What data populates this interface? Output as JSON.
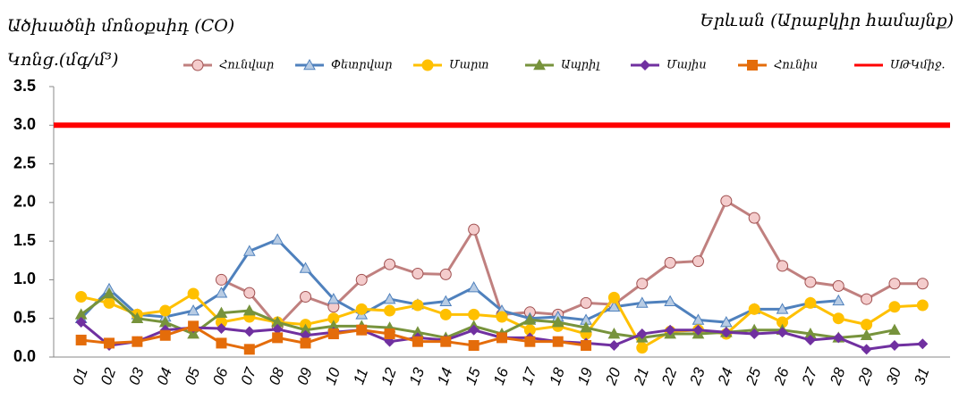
{
  "chart_data": {
    "type": "line",
    "title": "Ածխածնի մոնօքսիդ (CO)",
    "subtitle": "Երևան (Արաբկիր համայնք)",
    "y_label": "Կոնց.(մգ/մ³)",
    "categories": [
      "01",
      "02",
      "03",
      "04",
      "05",
      "06",
      "07",
      "08",
      "09",
      "10",
      "11",
      "12",
      "13",
      "14",
      "15",
      "16",
      "17",
      "18",
      "19",
      "20",
      "21",
      "22",
      "23",
      "24",
      "25",
      "26",
      "27",
      "28",
      "29",
      "30",
      "31"
    ],
    "series": [
      {
        "name": "Հունվար",
        "color": "#c0807f",
        "marker": "circle",
        "values": [
          null,
          null,
          null,
          null,
          null,
          1.0,
          0.83,
          0.4,
          0.78,
          0.65,
          1.0,
          1.2,
          1.08,
          1.07,
          1.65,
          0.55,
          0.58,
          0.55,
          0.7,
          0.68,
          0.95,
          1.22,
          1.24,
          2.02,
          1.8,
          1.18,
          0.97,
          0.92,
          0.75,
          0.95,
          0.95
        ]
      },
      {
        "name": "Փետրվար",
        "color": "#4f81bd",
        "marker": "triangle",
        "values": [
          0.5,
          0.88,
          0.55,
          0.52,
          0.6,
          0.83,
          1.37,
          1.52,
          1.15,
          0.75,
          0.55,
          0.75,
          0.68,
          0.72,
          0.9,
          0.6,
          0.5,
          0.52,
          0.48,
          0.65,
          0.7,
          0.72,
          0.48,
          0.45,
          0.62,
          0.62,
          0.7,
          0.73,
          null,
          null,
          null
        ]
      },
      {
        "name": "Մարտ",
        "color": "#ffc000",
        "marker": "circle",
        "values": [
          0.78,
          0.7,
          0.55,
          0.6,
          0.82,
          0.45,
          0.52,
          0.45,
          0.42,
          0.5,
          0.62,
          0.6,
          0.67,
          0.55,
          0.55,
          0.52,
          0.35,
          0.4,
          0.3,
          0.77,
          0.12,
          0.33,
          0.35,
          0.3,
          0.62,
          0.45,
          0.7,
          0.5,
          0.42,
          0.65,
          0.67
        ]
      },
      {
        "name": "Ապրիլ",
        "color": "#77933c",
        "marker": "triangle",
        "values": [
          0.55,
          0.82,
          0.5,
          0.45,
          0.3,
          0.57,
          0.6,
          0.45,
          0.35,
          0.4,
          0.4,
          0.38,
          0.32,
          0.25,
          0.4,
          0.3,
          0.48,
          0.45,
          0.38,
          0.3,
          0.25,
          0.3,
          0.3,
          0.32,
          0.35,
          0.35,
          0.3,
          0.25,
          0.28,
          0.35,
          null
        ]
      },
      {
        "name": "Մայիս",
        "color": "#7030a0",
        "marker": "diamond",
        "values": [
          0.45,
          0.15,
          0.2,
          0.35,
          0.38,
          0.37,
          0.33,
          0.36,
          0.28,
          0.32,
          0.35,
          0.2,
          0.25,
          0.22,
          0.35,
          0.25,
          0.25,
          0.2,
          0.18,
          0.15,
          0.3,
          0.35,
          0.35,
          0.32,
          0.3,
          0.32,
          0.22,
          0.25,
          0.1,
          0.15,
          0.17
        ]
      },
      {
        "name": "Հունիս",
        "color": "#e46c0a",
        "marker": "square",
        "values": [
          0.22,
          0.18,
          0.2,
          0.28,
          0.4,
          0.18,
          0.1,
          0.25,
          0.18,
          0.3,
          0.35,
          0.3,
          0.2,
          0.2,
          0.15,
          0.25,
          0.2,
          0.2,
          0.15,
          null,
          null,
          null,
          null,
          null,
          null,
          null,
          null,
          null,
          null,
          null,
          null
        ]
      }
    ],
    "threshold": {
      "name": "ՍԹԿմիջ.",
      "value": 3,
      "color": "#ff0000"
    },
    "ylim": [
      0,
      3.5
    ],
    "yticks": [
      {
        "value": 0,
        "label": "0.0"
      },
      0.5,
      {
        "value": 1,
        "label": "1.0"
      },
      1.5,
      {
        "value": 2,
        "label": "2.0"
      },
      2.5,
      {
        "value": 3,
        "label": "3.0"
      },
      3.5
    ],
    "grid": false,
    "legend": "top"
  }
}
